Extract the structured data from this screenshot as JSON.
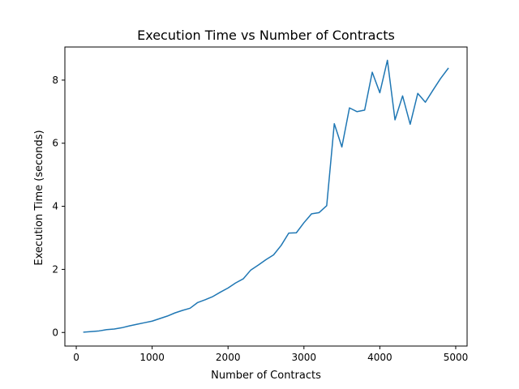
{
  "chart_data": {
    "type": "line",
    "title": "Execution Time vs Number of Contracts",
    "xlabel": "Number of Contracts",
    "ylabel": "Execution Time (seconds)",
    "xlim": [
      -150,
      5150
    ],
    "ylim": [
      -0.43,
      9.05
    ],
    "xticks": [
      0,
      1000,
      2000,
      3000,
      4000,
      5000
    ],
    "yticks": [
      0,
      2,
      4,
      6,
      8
    ],
    "grid": false,
    "line_color": "#1f77b4",
    "series": [
      {
        "x": [
          100,
          200,
          300,
          400,
          500,
          600,
          700,
          800,
          900,
          1000,
          1100,
          1200,
          1300,
          1400,
          1500,
          1600,
          1700,
          1800,
          1900,
          2000,
          2100,
          2200,
          2300,
          2400,
          2500,
          2600,
          2700,
          2800,
          2900,
          3000,
          3100,
          3200,
          3300,
          3400,
          3500,
          3600,
          3700,
          3800,
          3900,
          4000,
          4100,
          4200,
          4300,
          4400,
          4500,
          4600,
          4700,
          4800,
          4900
        ],
        "y": [
          0.01,
          0.03,
          0.05,
          0.09,
          0.11,
          0.15,
          0.21,
          0.26,
          0.31,
          0.36,
          0.44,
          0.52,
          0.62,
          0.7,
          0.77,
          0.95,
          1.04,
          1.14,
          1.28,
          1.41,
          1.57,
          1.7,
          1.98,
          2.14,
          2.31,
          2.46,
          2.76,
          3.15,
          3.16,
          3.48,
          3.76,
          3.8,
          4.02,
          6.62,
          5.88,
          7.12,
          7.0,
          7.05,
          8.25,
          7.6,
          8.63,
          6.74,
          7.5,
          6.6,
          7.58,
          7.3,
          7.68,
          8.05,
          8.37
        ]
      }
    ]
  }
}
